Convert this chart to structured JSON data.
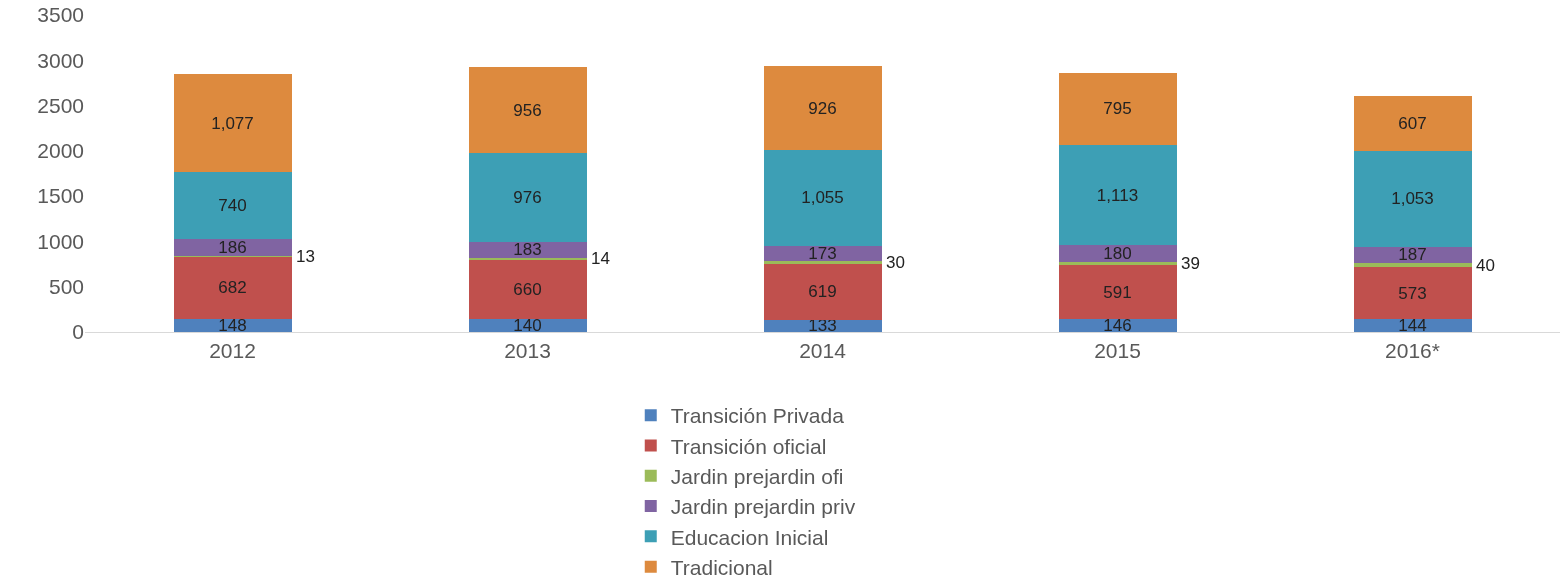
{
  "chart_data": {
    "type": "bar",
    "stacked": true,
    "categories": [
      "2012",
      "2013",
      "2014",
      "2015",
      "2016*"
    ],
    "series": [
      {
        "name": "Transición Privada",
        "color": "#4f81bd",
        "values": [
          148,
          140,
          133,
          146,
          144
        ],
        "value_labels": [
          "148",
          "140",
          "133",
          "146",
          "144"
        ]
      },
      {
        "name": "Transición oficial",
        "color": "#c0504d",
        "values": [
          682,
          660,
          619,
          591,
          573
        ],
        "value_labels": [
          "682",
          "660",
          "619",
          "591",
          "573"
        ]
      },
      {
        "name": "Jardin prejardin ofi",
        "color": "#9bbb59",
        "values": [
          13,
          14,
          30,
          39,
          40
        ],
        "value_labels": [
          "13",
          "14",
          "30",
          "39",
          "40"
        ]
      },
      {
        "name": "Jardin prejardin priv",
        "color": "#8064a2",
        "values": [
          186,
          183,
          173,
          180,
          187
        ],
        "value_labels": [
          "186",
          "183",
          "173",
          "180",
          "187"
        ]
      },
      {
        "name": "Educacion Inicial",
        "color": "#3d9fb5",
        "values": [
          740,
          976,
          1055,
          1113,
          1053
        ],
        "value_labels": [
          "740",
          "976",
          "1,055",
          "1,113",
          "1,053"
        ]
      },
      {
        "name": "Tradicional",
        "color": "#dd8a3e",
        "values": [
          1077,
          956,
          926,
          795,
          607
        ],
        "value_labels": [
          "1,077",
          "956",
          "926",
          "795",
          "607"
        ]
      }
    ],
    "ylim": [
      0,
      3500
    ],
    "yticks": [
      0,
      500,
      1000,
      1500,
      2000,
      2500,
      3000,
      3500
    ],
    "grid": false,
    "legend": "bottom"
  }
}
